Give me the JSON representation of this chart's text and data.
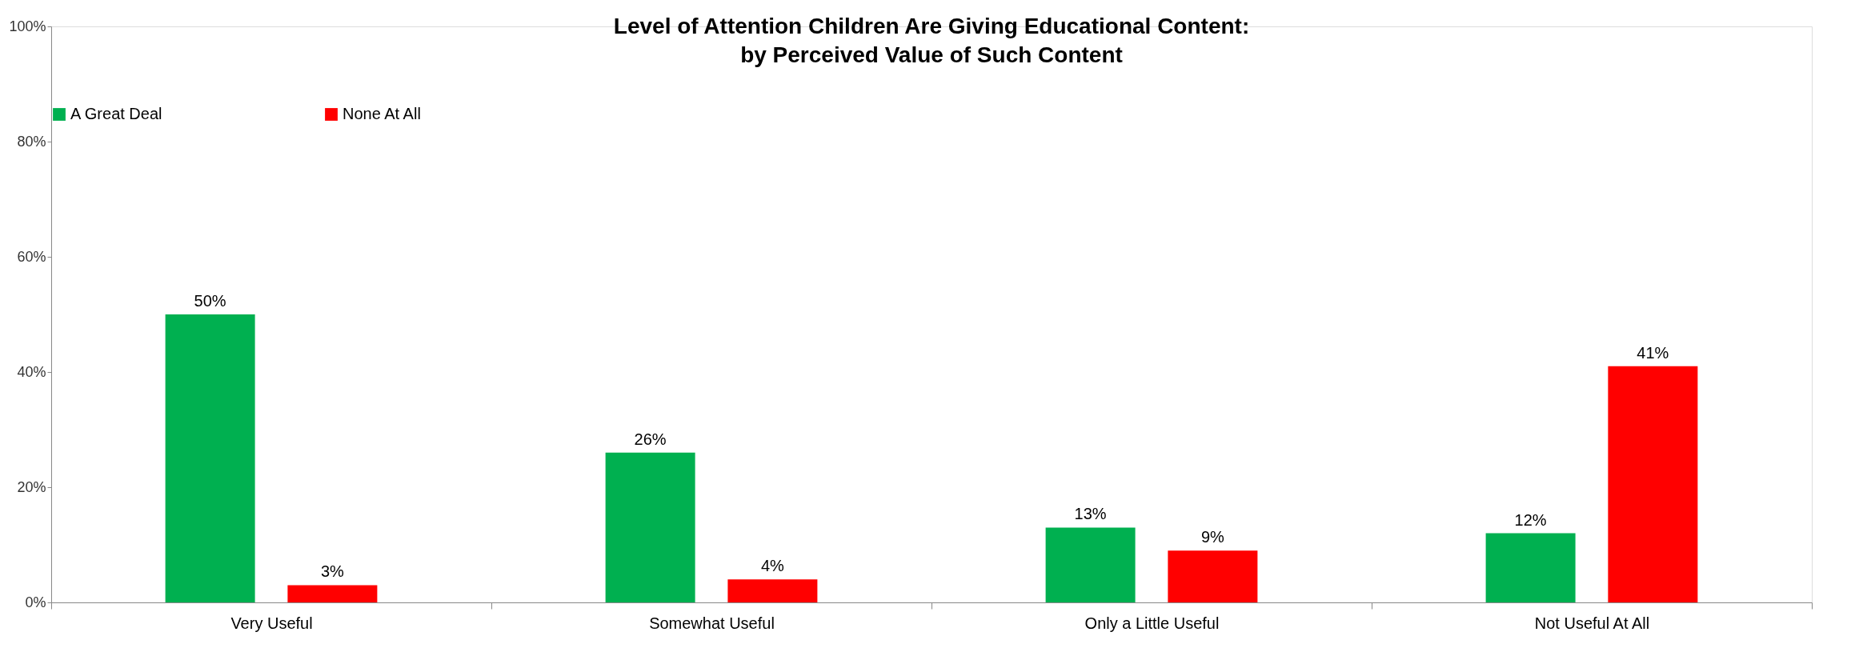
{
  "chart_data": {
    "type": "bar",
    "title": "Level of Attention Children Are Giving Educational Content:\nby Perceived Value of Such Content",
    "categories": [
      "Very Useful",
      "Somewhat Useful",
      "Only a Little Useful",
      "Not Useful At All"
    ],
    "series": [
      {
        "name": "A Great Deal",
        "color": "#00b050",
        "values": [
          50,
          26,
          13,
          12
        ],
        "value_labels": [
          "50%",
          "26%",
          "13%",
          "12%"
        ]
      },
      {
        "name": "None At All",
        "color": "#ff0000",
        "values": [
          3,
          4,
          9,
          41
        ],
        "value_labels": [
          "3%",
          "4%",
          "9%",
          "41%"
        ]
      }
    ],
    "ylim": [
      0,
      100
    ],
    "yticks": [
      {
        "value": 0,
        "label": "0%"
      },
      {
        "value": 20,
        "label": "20%"
      },
      {
        "value": 40,
        "label": "40%"
      },
      {
        "value": 60,
        "label": "60%"
      },
      {
        "value": 80,
        "label": "80%"
      },
      {
        "value": 100,
        "label": "100%"
      }
    ],
    "legend": "top",
    "grid": false
  }
}
